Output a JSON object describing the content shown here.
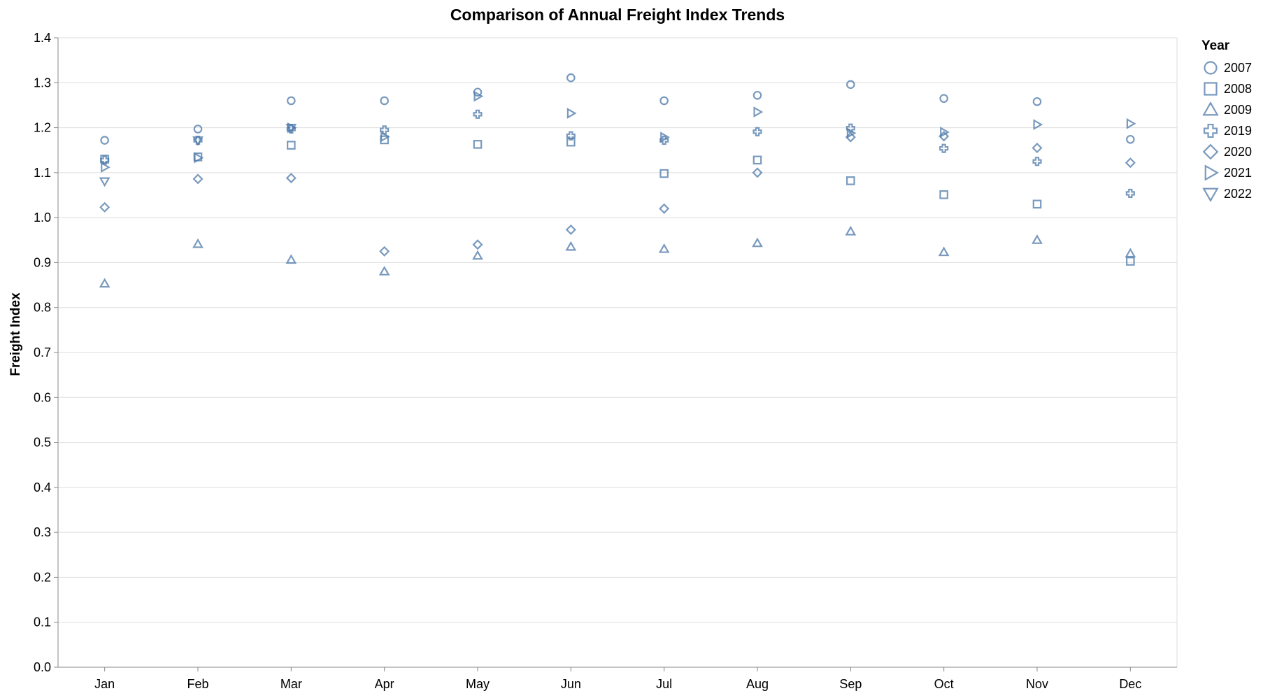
{
  "chart_data": {
    "type": "scatter",
    "title": "Comparison of Annual Freight Index Trends",
    "xlabel": "",
    "ylabel": "Freight Index",
    "categories": [
      "Jan",
      "Feb",
      "Mar",
      "Apr",
      "May",
      "Jun",
      "Jul",
      "Aug",
      "Sep",
      "Oct",
      "Nov",
      "Dec"
    ],
    "ylim": [
      0,
      1.4
    ],
    "yticks": [
      "0.0",
      "0.1",
      "0.2",
      "0.3",
      "0.4",
      "0.5",
      "0.6",
      "0.7",
      "0.8",
      "0.9",
      "1.0",
      "1.1",
      "1.2",
      "1.3",
      "1.4"
    ],
    "grid": true,
    "legend": {
      "title": "Year",
      "placement": "right"
    },
    "color": "#4c78a8",
    "series": [
      {
        "name": "2007",
        "shape": "circle",
        "values": [
          1.172,
          1.197,
          1.26,
          1.26,
          1.279,
          1.311,
          1.26,
          1.272,
          1.296,
          1.265,
          1.258,
          1.174
        ]
      },
      {
        "name": "2008",
        "shape": "square",
        "values": [
          1.13,
          1.135,
          1.161,
          1.173,
          1.163,
          1.168,
          1.098,
          1.128,
          1.082,
          1.051,
          1.03,
          0.903
        ]
      },
      {
        "name": "2009",
        "shape": "triangle-up",
        "values": [
          0.853,
          0.941,
          0.906,
          0.88,
          0.915,
          0.935,
          0.93,
          0.943,
          0.969,
          0.923,
          0.95,
          0.92
        ]
      },
      {
        "name": "2019",
        "shape": "cross",
        "values": [
          1.128,
          1.172,
          1.197,
          1.195,
          1.23,
          1.182,
          1.172,
          1.191,
          1.199,
          1.154,
          1.125,
          1.054
        ]
      },
      {
        "name": "2020",
        "shape": "diamond",
        "values": [
          1.023,
          1.086,
          1.088,
          0.925,
          0.94,
          0.973,
          1.02,
          1.1,
          1.179,
          1.181,
          1.155,
          1.122
        ]
      },
      {
        "name": "2021",
        "shape": "triangle-right",
        "values": [
          1.112,
          1.133,
          1.2,
          1.18,
          1.27,
          1.232,
          1.179,
          1.235,
          1.188,
          1.19,
          1.207,
          1.209
        ]
      },
      {
        "name": "2022",
        "shape": "triangle-down",
        "values": [
          1.081,
          1.172,
          1.2,
          null,
          null,
          null,
          null,
          null,
          null,
          null,
          null,
          null
        ]
      }
    ]
  }
}
